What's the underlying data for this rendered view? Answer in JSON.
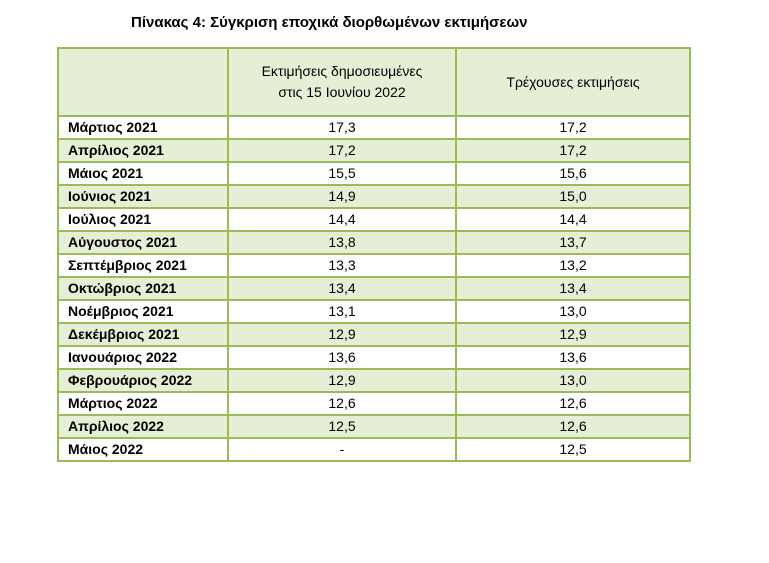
{
  "title": "Πίνακας 4: Σύγκριση εποχικά διορθωμένων εκτιμήσεων",
  "table": {
    "headers": [
      "",
      "Εκτιμήσεις δημοσιευμένες στις 15 Ιουνίου 2022",
      "Τρέχουσες εκτιμήσεις"
    ],
    "header_col2_line1": "Εκτιμήσεις δημοσιευμένες",
    "header_col2_line2": "στις 15 Ιουνίου 2022",
    "rows": [
      {
        "month": "Μάρτιος 2021",
        "published": "17,3",
        "current": "17,2"
      },
      {
        "month": "Απρίλιος 2021",
        "published": "17,2",
        "current": "17,2"
      },
      {
        "month": "Μάιος 2021",
        "published": "15,5",
        "current": "15,6"
      },
      {
        "month": "Ιούνιος 2021",
        "published": "14,9",
        "current": "15,0"
      },
      {
        "month": "Ιούλιος 2021",
        "published": "14,4",
        "current": "14,4"
      },
      {
        "month": "Αύγουστος 2021",
        "published": "13,8",
        "current": "13,7"
      },
      {
        "month": "Σεπτέμβριος 2021",
        "published": "13,3",
        "current": "13,2"
      },
      {
        "month": "Οκτώβριος 2021",
        "published": "13,4",
        "current": "13,4"
      },
      {
        "month": "Νοέμβριος 2021",
        "published": "13,1",
        "current": "13,0"
      },
      {
        "month": "Δεκέμβριος 2021",
        "published": "12,9",
        "current": "12,9"
      },
      {
        "month": "Ιανουάριος 2022",
        "published": "13,6",
        "current": "13,6"
      },
      {
        "month": "Φεβρουάριος 2022",
        "published": "12,9",
        "current": "13,0"
      },
      {
        "month": "Μάρτιος 2022",
        "published": "12,6",
        "current": "12,6"
      },
      {
        "month": "Απρίλιος 2022",
        "published": "12,5",
        "current": "12,6"
      },
      {
        "month": "Μάιος 2022",
        "published": "-",
        "current": "12,5"
      }
    ]
  },
  "colors": {
    "border": "#9bbb59",
    "shade": "#e6eed5"
  }
}
